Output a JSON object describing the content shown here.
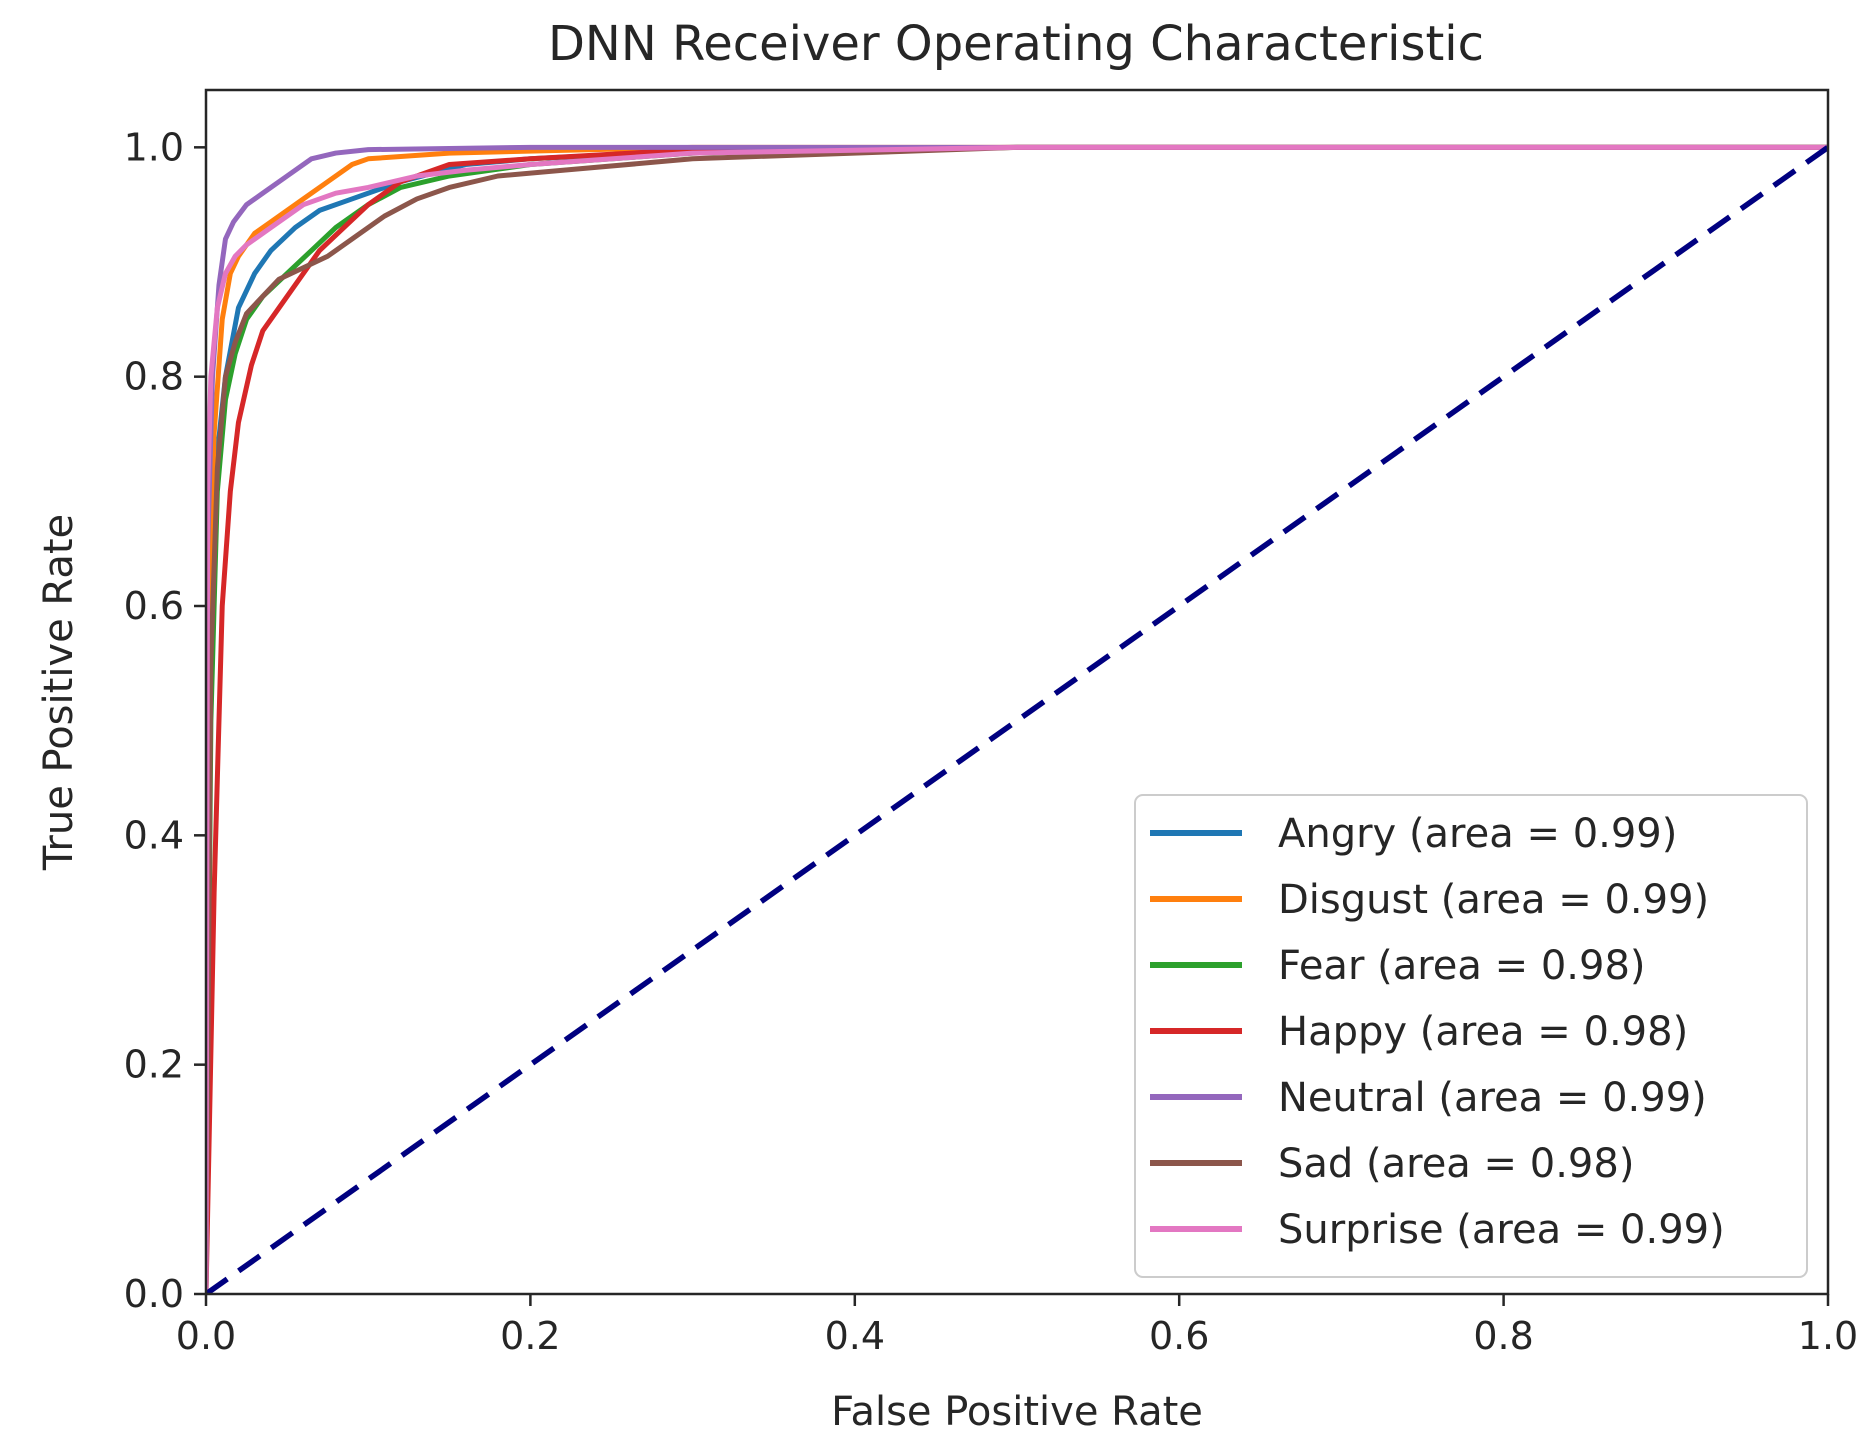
{
  "chart_data": {
    "type": "line",
    "title": "DNN Receiver Operating Characteristic",
    "xlabel": "False Positive Rate",
    "ylabel": "True Positive Rate",
    "xlim": [
      0.0,
      1.0
    ],
    "ylim": [
      0.0,
      1.05
    ],
    "xticks": [
      0.0,
      0.2,
      0.4,
      0.6,
      0.8,
      1.0
    ],
    "yticks": [
      0.0,
      0.2,
      0.4,
      0.6,
      0.8,
      1.0
    ],
    "xtick_labels": [
      "0.0",
      "0.2",
      "0.4",
      "0.6",
      "0.8",
      "1.0"
    ],
    "ytick_labels": [
      "0.0",
      "0.2",
      "0.4",
      "0.6",
      "0.8",
      "1.0"
    ],
    "legend_position": "bottom-right",
    "grid": false,
    "series": [
      {
        "name": "Angry",
        "label": "Angry (area = 0.99)",
        "area": 0.99,
        "color": "#1f77b4",
        "x": [
          0.0,
          0.002,
          0.006,
          0.012,
          0.02,
          0.03,
          0.04,
          0.055,
          0.07,
          0.09,
          0.12,
          0.16,
          0.2,
          0.3,
          0.5,
          0.7,
          1.0
        ],
        "y": [
          0.0,
          0.55,
          0.72,
          0.8,
          0.86,
          0.89,
          0.91,
          0.93,
          0.945,
          0.955,
          0.97,
          0.985,
          0.99,
          0.997,
          1.0,
          1.0,
          1.0
        ]
      },
      {
        "name": "Disgust",
        "label": "Disgust (area = 0.99)",
        "area": 0.99,
        "color": "#ff7f0e",
        "x": [
          0.0,
          0.002,
          0.005,
          0.01,
          0.015,
          0.02,
          0.03,
          0.04,
          0.05,
          0.06,
          0.075,
          0.09,
          0.1,
          0.15,
          0.3,
          0.5,
          1.0
        ],
        "y": [
          0.0,
          0.6,
          0.75,
          0.85,
          0.89,
          0.905,
          0.925,
          0.935,
          0.945,
          0.955,
          0.97,
          0.985,
          0.99,
          0.995,
          1.0,
          1.0,
          1.0
        ]
      },
      {
        "name": "Fear",
        "label": "Fear (area = 0.98)",
        "area": 0.98,
        "color": "#2ca02c",
        "x": [
          0.0,
          0.003,
          0.007,
          0.012,
          0.018,
          0.025,
          0.035,
          0.05,
          0.065,
          0.08,
          0.1,
          0.12,
          0.15,
          0.2,
          0.3,
          0.5,
          1.0
        ],
        "y": [
          0.0,
          0.5,
          0.7,
          0.78,
          0.82,
          0.85,
          0.87,
          0.89,
          0.91,
          0.93,
          0.95,
          0.965,
          0.975,
          0.985,
          0.995,
          1.0,
          1.0
        ]
      },
      {
        "name": "Happy",
        "label": "Happy (area = 0.98)",
        "area": 0.98,
        "color": "#d62728",
        "x": [
          0.0,
          0.005,
          0.01,
          0.015,
          0.02,
          0.028,
          0.035,
          0.045,
          0.055,
          0.07,
          0.085,
          0.1,
          0.12,
          0.15,
          0.2,
          0.3,
          0.5,
          1.0
        ],
        "y": [
          0.0,
          0.35,
          0.6,
          0.7,
          0.76,
          0.81,
          0.84,
          0.86,
          0.88,
          0.91,
          0.93,
          0.95,
          0.97,
          0.985,
          0.99,
          0.998,
          1.0,
          1.0
        ]
      },
      {
        "name": "Neutral",
        "label": "Neutral (area = 0.99)",
        "area": 0.99,
        "color": "#9467bd",
        "x": [
          0.0,
          0.001,
          0.004,
          0.008,
          0.012,
          0.017,
          0.025,
          0.035,
          0.05,
          0.065,
          0.08,
          0.1,
          0.2,
          0.5,
          1.0
        ],
        "y": [
          0.0,
          0.65,
          0.8,
          0.88,
          0.92,
          0.935,
          0.95,
          0.96,
          0.975,
          0.99,
          0.995,
          0.998,
          1.0,
          1.0,
          1.0
        ]
      },
      {
        "name": "Sad",
        "label": "Sad (area = 0.98)",
        "area": 0.98,
        "color": "#8c564b",
        "x": [
          0.0,
          0.003,
          0.007,
          0.012,
          0.018,
          0.025,
          0.035,
          0.045,
          0.06,
          0.075,
          0.09,
          0.11,
          0.13,
          0.15,
          0.18,
          0.22,
          0.3,
          0.5,
          1.0
        ],
        "y": [
          0.0,
          0.55,
          0.72,
          0.8,
          0.83,
          0.855,
          0.87,
          0.885,
          0.895,
          0.905,
          0.92,
          0.94,
          0.955,
          0.965,
          0.975,
          0.98,
          0.99,
          1.0,
          1.0
        ]
      },
      {
        "name": "Surprise",
        "label": "Surprise (area = 0.99)",
        "area": 0.99,
        "color": "#e377c2",
        "x": [
          0.0,
          0.001,
          0.003,
          0.007,
          0.012,
          0.018,
          0.025,
          0.04,
          0.06,
          0.08,
          0.1,
          0.13,
          0.16,
          0.2,
          0.3,
          0.5,
          1.0
        ],
        "y": [
          0.0,
          0.7,
          0.8,
          0.86,
          0.89,
          0.905,
          0.915,
          0.93,
          0.95,
          0.96,
          0.965,
          0.975,
          0.98,
          0.985,
          0.995,
          1.0,
          1.0
        ]
      }
    ],
    "reference_line": {
      "x": [
        0.0,
        1.0
      ],
      "y": [
        0.0,
        1.0
      ],
      "color": "#000080",
      "style": "dashed"
    }
  }
}
